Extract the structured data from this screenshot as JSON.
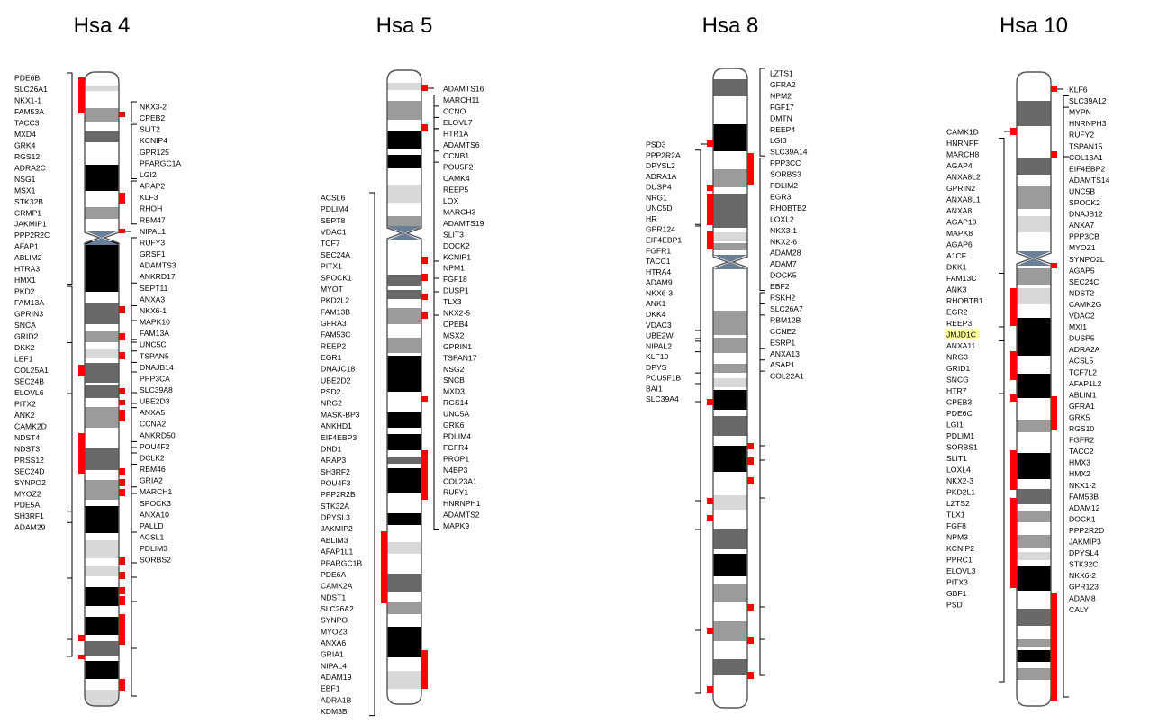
{
  "chromosomes": [
    {
      "id": "hsa4",
      "title": "Hsa 4",
      "left_genes": [
        "PDE6B",
        "SLC26A1",
        "NKX1-1",
        "FAM53A",
        "TACC3",
        "MXD4",
        "GRK4",
        "RGS12",
        "ADRA2C",
        "NSG1",
        "MSX1",
        "STK32B",
        "CRMP1",
        "JAKMIP1",
        "PPP2R2C",
        "AFAP1",
        "ABLIM2",
        "HTRA3",
        "HMX1",
        "PKD2",
        "FAM13A",
        "GPRIN3",
        "SNCA",
        "GRID2",
        "DKK2",
        "LEF1",
        "COL25A1",
        "SEC24B",
        "ELOVL6",
        "PITX2",
        "ANK2",
        "CAMK2D",
        "NDST4",
        "NDST3",
        "PRSS12",
        "SEC24D",
        "SYNPO2",
        "MYOZ2",
        "PDE5A",
        "SH3RF1",
        "ADAM29"
      ],
      "right_genes": [
        "NKX3-2",
        "CPEB2",
        "SLIT2",
        "KCNIP4",
        "GPR125",
        "PPARGC1A",
        "LGI2",
        "ARAP2",
        "KLF3",
        "RHOH",
        "RBM47",
        "NIPAL1",
        "RUFY3",
        "GRSF1",
        "ADAMTS3",
        "ANKRD17",
        "SEPT11",
        "ANXA3",
        "NKX6-1",
        "MAPK10",
        "FAM13A",
        "UNC5C",
        "TSPAN5",
        "DNAJB14",
        "PPP3CA",
        "SLC39A8",
        "UBE2D3",
        "ANXA5",
        "CCNA2",
        "ANKRD50",
        "POU4F2",
        "DCLK2",
        "RBM46",
        "GRIA2",
        "MARCH1",
        "SPOCK3",
        "ANXA10",
        "PALLD",
        "ACSL1",
        "PDLIM3",
        "SORBS2"
      ]
    },
    {
      "id": "hsa5",
      "title": "Hsa 5",
      "left_genes": [
        "ACSL6",
        "PDLIM4",
        "SEPT8",
        "VDAC1",
        "TCF7",
        "SEC24A",
        "PITX1",
        "SPOCK1",
        "MYOT",
        "PKD2L2",
        "FAM13B",
        "GFRA3",
        "FAM53C",
        "REEP2",
        "EGR1",
        "DNAJC18",
        "UBE2D2",
        "PSD2",
        "NRG2",
        "MASK-BP3",
        "ANKHD1",
        "EIF4EBP3",
        "DND1",
        "ARAP3",
        "SH3RF2",
        "POU4F3",
        "PPP2R2B",
        "STK32A",
        "DPYSL3",
        "JAKMIP2",
        "ABLIM3",
        "AFAP1L1",
        "PPARGC1B",
        "PDE6A",
        "CAMK2A",
        "NDST1",
        "SLC26A2",
        "SYNPO",
        "MYOZ3",
        "ANXA6",
        "GRIA1",
        "NIPAL4",
        "ADAM19",
        "EBF1",
        "ADRA1B",
        "KDM3B"
      ],
      "right_genes": [
        "ADAMTS16",
        "MARCH11",
        "CCNO",
        "ELOVL7",
        "HTR1A",
        "ADAMTS6",
        "CCNB1",
        "POU5F2",
        "CAMK4",
        "REEP5",
        "LOX",
        "MARCH3",
        "ADAMTS19",
        "SLIT3",
        "DOCK2",
        "KCNIP1",
        "NPM1",
        "FGF18",
        "DUSP1",
        "TLX3",
        "NKX2-5",
        "CPEB4",
        "MSX2",
        "GPRIN1",
        "TSPAN17",
        "NSG2",
        "SNCB",
        "MXD3",
        "RGS14",
        "UNC5A",
        "GRK6",
        "PDLIM4",
        "FGFR4",
        "PROP1",
        "N4BP3",
        "COL23A1",
        "RUFY1",
        "HNRNPH1",
        "ADAMTS2",
        "MAPK9"
      ]
    },
    {
      "id": "hsa8",
      "title": "Hsa 8",
      "left_genes": [
        "PSD3",
        "PPP2R2A",
        "DPYSL2",
        "ADRA1A",
        "DUSP4",
        "NRG1",
        "UNC5D",
        "HR",
        "GPR124",
        "EIF4EBP1",
        "FGFR1",
        "TACC1",
        "HTRA4",
        "ADAM9",
        "NKX6-3",
        "ANK1",
        "DKK4",
        "VDAC3",
        "UBE2W",
        "NIPAL2",
        "KLF10",
        "DPYS",
        "POU5F1B",
        "BAI1",
        "SLC39A4"
      ],
      "right_genes": [
        "LZTS1",
        "GFRA2",
        "NPM2",
        "FGF17",
        "DMTN",
        "REEP4",
        "LGI3",
        "SLC39A14",
        "PPP3CC",
        "SORBS3",
        "PDLIM2",
        "EGR3",
        "RHOBTB2",
        "LOXL2",
        "NKX3-1",
        "NKX2-6",
        "ADAM28",
        "ADAM7",
        "DOCK5",
        "EBF2",
        "PSKH2",
        "SLC26A7",
        "RBM12B",
        "CCNE2",
        "ESRP1",
        "ANXA13",
        "ASAP1",
        "COL22A1"
      ]
    },
    {
      "id": "hsa10",
      "title": "Hsa 10",
      "left_genes": [
        "CAMK1D",
        "HNRNPF",
        "MARCH8",
        "AGAP4",
        "ANXA8L2",
        "GPRIN2",
        "ANXA8L1",
        "ANXA8",
        "AGAP10",
        "MAPK8",
        "AGAP6",
        "A1CF",
        "DKK1",
        "FAM13C",
        "ANK3",
        "RHOBTB1",
        "EGR2",
        "REEP3",
        "JMJD1C",
        "ANXA11",
        "NRG3",
        "GRID1",
        "SNCG",
        "HTR7",
        "CPEB3",
        "PDE6C",
        "LGI1",
        "PDLIM1",
        "SORBS1",
        "SLIT1",
        "LOXL4",
        "NKX2-3",
        "PKD2L1",
        "LZTS2",
        "TLX1",
        "FGF8",
        "NPM3",
        "KCNIP2",
        "PPRC1",
        "ELOVL3",
        "PITX3",
        "GBF1",
        "PSD"
      ],
      "right_genes": [
        "KLF6",
        "SLC39A12",
        "MYPN",
        "HNRNPH3",
        "RUFY2",
        "TSPAN15",
        "COL13A1",
        "EIF4EBP2",
        "ADAMTS14",
        "UNC5B",
        "SPOCK2",
        "DNAJB12",
        "ANXA7",
        "PPP3CB",
        "MYOZ1",
        "SYNPO2L",
        "AGAP5",
        "SEC24C",
        "NDST2",
        "CAMK2G",
        "VDAC2",
        "MXI1",
        "DUSP5",
        "ADRA2A",
        "ACSL5",
        "TCF7L2",
        "AFAP1L2",
        "ABLIM1",
        "GFRA1",
        "GRK5",
        "RGS10",
        "FGFR2",
        "TACC2",
        "HMX3",
        "HMX2",
        "NKX1-2",
        "FAM53B",
        "ADAM12",
        "DOCK1",
        "PPP2R2D",
        "JAKMIP3",
        "DPYSL4",
        "STK32C",
        "NKX6-2",
        "GPR123",
        "ADAM8",
        "CALY"
      ],
      "highlighted_gene": "JMJD1C",
      "highlight_color": "#ffff99"
    }
  ],
  "colors": {
    "marker": "#ff0000",
    "centromere": "#6a7f95",
    "band_black": "#000000",
    "band_dark": "#696969",
    "band_mid": "#9b9b9b",
    "band_light": "#d8d8d8",
    "band_white": "#ffffff"
  }
}
